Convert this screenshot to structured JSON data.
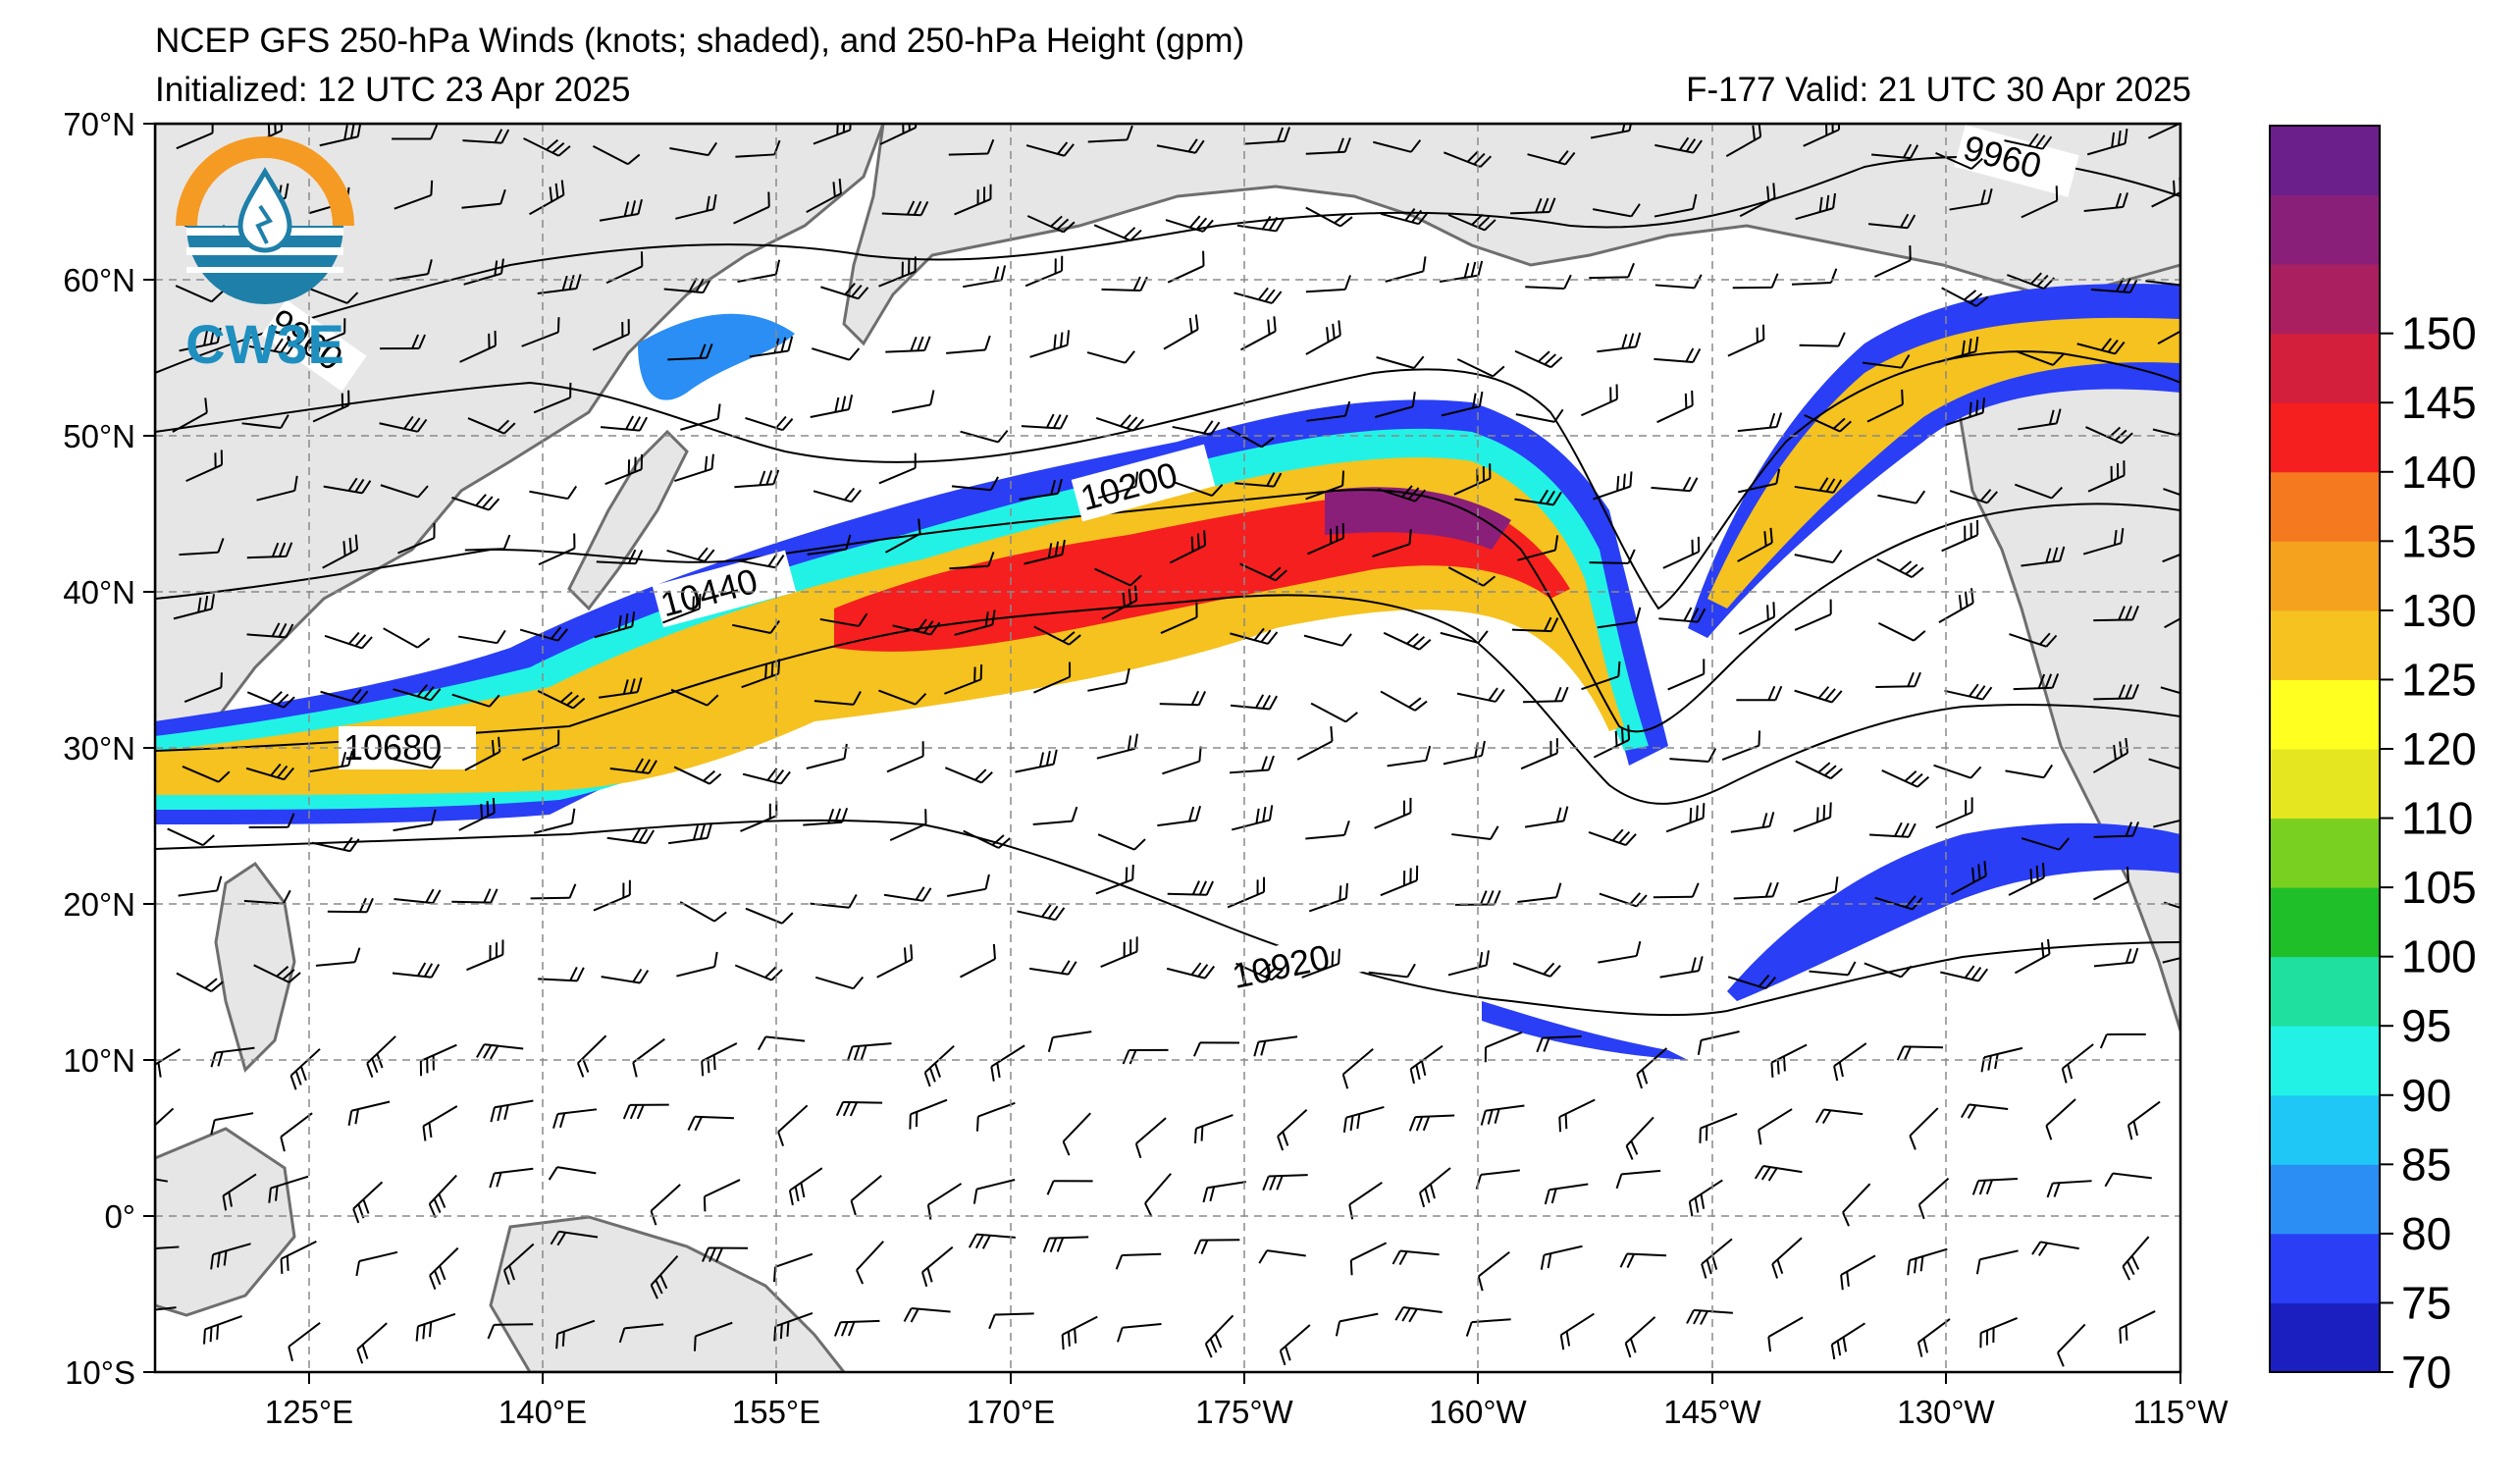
{
  "title": {
    "line1": "NCEP GFS 250-hPa Winds (knots; shaded), and 250-hPa Height (gpm)",
    "line2": "Initialized: 12 UTC 23 Apr 2025",
    "right": "F-177  Valid: 21 UTC 30 Apr 2025"
  },
  "logo": {
    "text": "CW3E",
    "icon": "cw3e-logo-icon"
  },
  "axes": {
    "lat_labels": [
      "70°N",
      "60°N",
      "50°N",
      "40°N",
      "30°N",
      "20°N",
      "10°N",
      "0°",
      "10°S"
    ],
    "lon_labels": [
      "125°E",
      "140°E",
      "155°E",
      "170°E",
      "175°W",
      "160°W",
      "145°W",
      "130°W",
      "115°W"
    ]
  },
  "colorbar": {
    "labels": [
      "70",
      "75",
      "80",
      "85",
      "90",
      "95",
      "100",
      "105",
      "110",
      "120",
      "125",
      "130",
      "135",
      "140",
      "145",
      "150"
    ],
    "colors": [
      "#1c1fbf",
      "#2a3ef5",
      "#2a8ef5",
      "#1ec7f5",
      "#22f2e6",
      "#20e0a0",
      "#1fbf2a",
      "#7ad020",
      "#e6e620",
      "#ffff20",
      "#f5c21f",
      "#f5a21f",
      "#f57a1f",
      "#f51f1f",
      "#d41f3c",
      "#aa1f5f",
      "#8a1f7a",
      "#6a1f8a"
    ]
  },
  "contours": {
    "labels": [
      "9960",
      "9960",
      "10200",
      "10440",
      "10680",
      "10920"
    ]
  },
  "map_colors": {
    "land": "#e6e6e6",
    "coast": "#6e6e6e",
    "grid": "#8a8a8a"
  }
}
